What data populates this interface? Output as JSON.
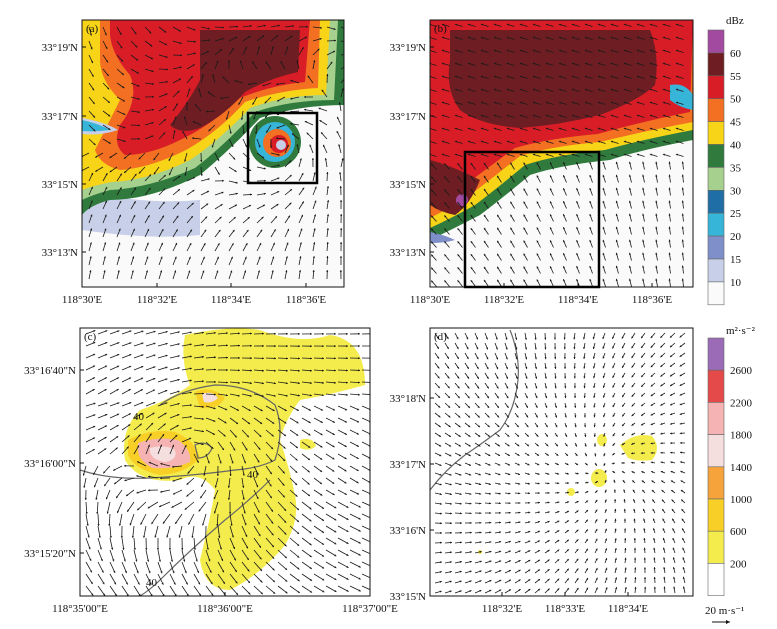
{
  "chart_data": [
    {
      "type": "heatmap",
      "panel": "(a)",
      "variable": "radar reflectivity",
      "units": "dBz",
      "x_ticks": [
        "118°30'E",
        "118°32'E",
        "118°34'E",
        "118°36'E"
      ],
      "y_ticks": [
        "33°19'N",
        "33°17'N",
        "33°15'N",
        "33°13'N"
      ],
      "bbox_box": "inset rectangle drawn around the hook echo",
      "wind_vectors": true
    },
    {
      "type": "heatmap",
      "panel": "(b)",
      "variable": "radar reflectivity",
      "units": "dBz",
      "x_ticks": [
        "118°30'E",
        "118°32'E",
        "118°34'E",
        "118°36'E"
      ],
      "y_ticks": [
        "33°19'N",
        "33°17'N",
        "33°15'N",
        "33°13'N"
      ],
      "wind_vectors": true
    },
    {
      "type": "heatmap",
      "panel": "(c)",
      "variable": "helicity",
      "units": "m²·s⁻²",
      "x_ticks": [
        "118°35'00\"E",
        "118°36'00\"E",
        "118°37'00\"E"
      ],
      "y_ticks": [
        "33°16'40\"N",
        "33°16'00\"N",
        "33°15'20\"N"
      ],
      "contour_labels": [
        "40",
        "40",
        "40"
      ],
      "wind_vectors": true
    },
    {
      "type": "heatmap",
      "panel": "(d)",
      "variable": "helicity",
      "units": "m²·s⁻²",
      "x_ticks": [
        "118°32'E",
        "118°33'E",
        "118°34'E"
      ],
      "y_ticks": [
        "33°18'N",
        "33°17'N",
        "33°16'N",
        "33°15'N"
      ],
      "wind_vectors": true
    }
  ],
  "colorbar_top": {
    "unit": "dBz",
    "labels": [
      "60",
      "55",
      "50",
      "45",
      "40",
      "35",
      "30",
      "25",
      "20",
      "15",
      "10"
    ],
    "colors": [
      "#a24aa0",
      "#6e1e22",
      "#d81d27",
      "#f36f21",
      "#f7d417",
      "#2f7a3c",
      "#a6d08e",
      "#1f6ea6",
      "#36b5d8",
      "#7f8fca",
      "#c8cfe8",
      "#fafafa"
    ]
  },
  "colorbar_bottom": {
    "unit": "m²·s⁻²",
    "labels": [
      "2600",
      "2200",
      "1800",
      "1400",
      "1000",
      "600",
      "200"
    ],
    "colors": [
      "#9b6bb8",
      "#e44a4a",
      "#f6b3b3",
      "#f5dede",
      "#f5a33a",
      "#f7cf26",
      "#f4ec4c",
      "#ffffff"
    ]
  },
  "wind_scale": {
    "label": "20 m·s⁻¹"
  },
  "colors": {
    "frame": "#111111",
    "vector": "#1a1a1a",
    "contour": "#555555"
  }
}
